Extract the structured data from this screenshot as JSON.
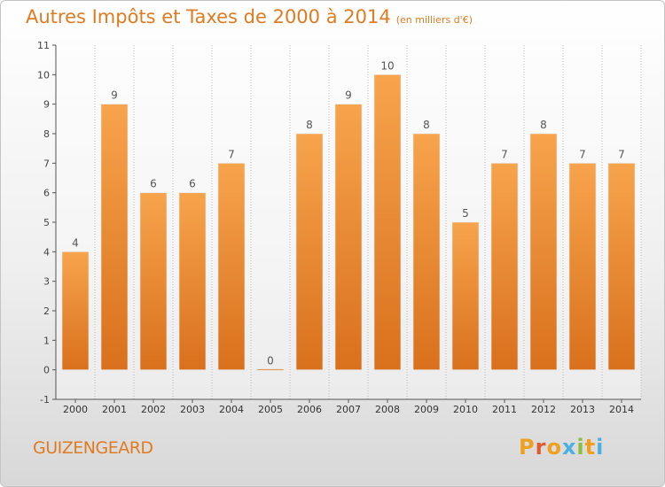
{
  "chart_data": {
    "type": "bar",
    "title": "Autres Impôts et Taxes de 2000 à 2014",
    "unit_label": "(en milliers d'€)",
    "categories": [
      "2000",
      "2001",
      "2002",
      "2003",
      "2004",
      "2005",
      "2006",
      "2007",
      "2008",
      "2009",
      "2010",
      "2011",
      "2012",
      "2013",
      "2014"
    ],
    "values": [
      4,
      9,
      6,
      6,
      7,
      0,
      8,
      9,
      10,
      8,
      5,
      7,
      8,
      7,
      7
    ],
    "value_labels": [
      "4",
      "9",
      "6",
      "6",
      "7",
      "0",
      "8",
      "9",
      "10",
      "8",
      "5",
      "7",
      "8",
      "7",
      "7"
    ],
    "y_ticks": [
      "-1",
      "0",
      "1",
      "2",
      "3",
      "4",
      "5",
      "6",
      "7",
      "8",
      "9",
      "10",
      "11"
    ],
    "ylim": [
      -1,
      11
    ],
    "grid": "vertical dotted",
    "bar_color_top": "#f7a44c",
    "bar_color_bottom": "#d9701c"
  },
  "footer": {
    "commune": "GUIZENGEARD",
    "logo_letters": [
      "P",
      "r",
      "o",
      "x",
      "i",
      "t",
      "i"
    ],
    "logo_colors": [
      "#f0a020",
      "#e05a30",
      "#f0a020",
      "#4ab0e0",
      "#88c040",
      "#f0a020",
      "#4ab0e0"
    ]
  },
  "colors": {
    "title": "#e07b20",
    "axis": "#555555",
    "grid": "#bbbbbb"
  }
}
